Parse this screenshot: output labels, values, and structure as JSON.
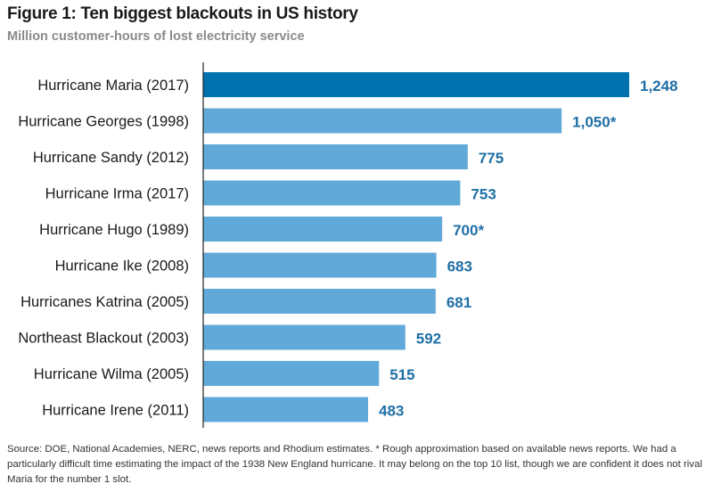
{
  "chart_data": {
    "type": "bar",
    "orientation": "horizontal",
    "title": "Figure 1: Ten biggest blackouts in US history",
    "subtitle": "Million customer-hours of lost electricity service",
    "categories": [
      "Hurricane Maria (2017)",
      "Hurricane Georges (1998)",
      "Hurricane Sandy (2012)",
      "Hurricane Irma (2017)",
      "Hurricane Hugo (1989)",
      "Hurricane Ike (2008)",
      "Hurricanes Katrina (2005)",
      "Northeast Blackout (2003)",
      "Hurricane Wilma (2005)",
      "Hurricane Irene (2011)"
    ],
    "values": [
      1248,
      1050,
      775,
      753,
      700,
      683,
      681,
      592,
      515,
      483
    ],
    "value_labels": [
      "1,248",
      "1,050*",
      "775",
      "753",
      "700*",
      "683",
      "681",
      "592",
      "515",
      "483"
    ],
    "highlight_index": 0,
    "xlim": [
      0,
      1248
    ],
    "xlabel": "",
    "ylabel": "",
    "grid": false,
    "colors": {
      "highlight": "#0073AE",
      "bar": "#61A9D8",
      "label": "#1F6FA6",
      "axis": "#222222"
    }
  },
  "source_note": "Source: DOE, National Academies, NERC, news reports and Rhodium estimates. * Rough approximation based on available news reports. We had a particularly difficult time estimating the impact of the 1938 New England hurricane. It may belong on the top 10 list, though we are confident it does not rival Maria for the number 1 slot."
}
